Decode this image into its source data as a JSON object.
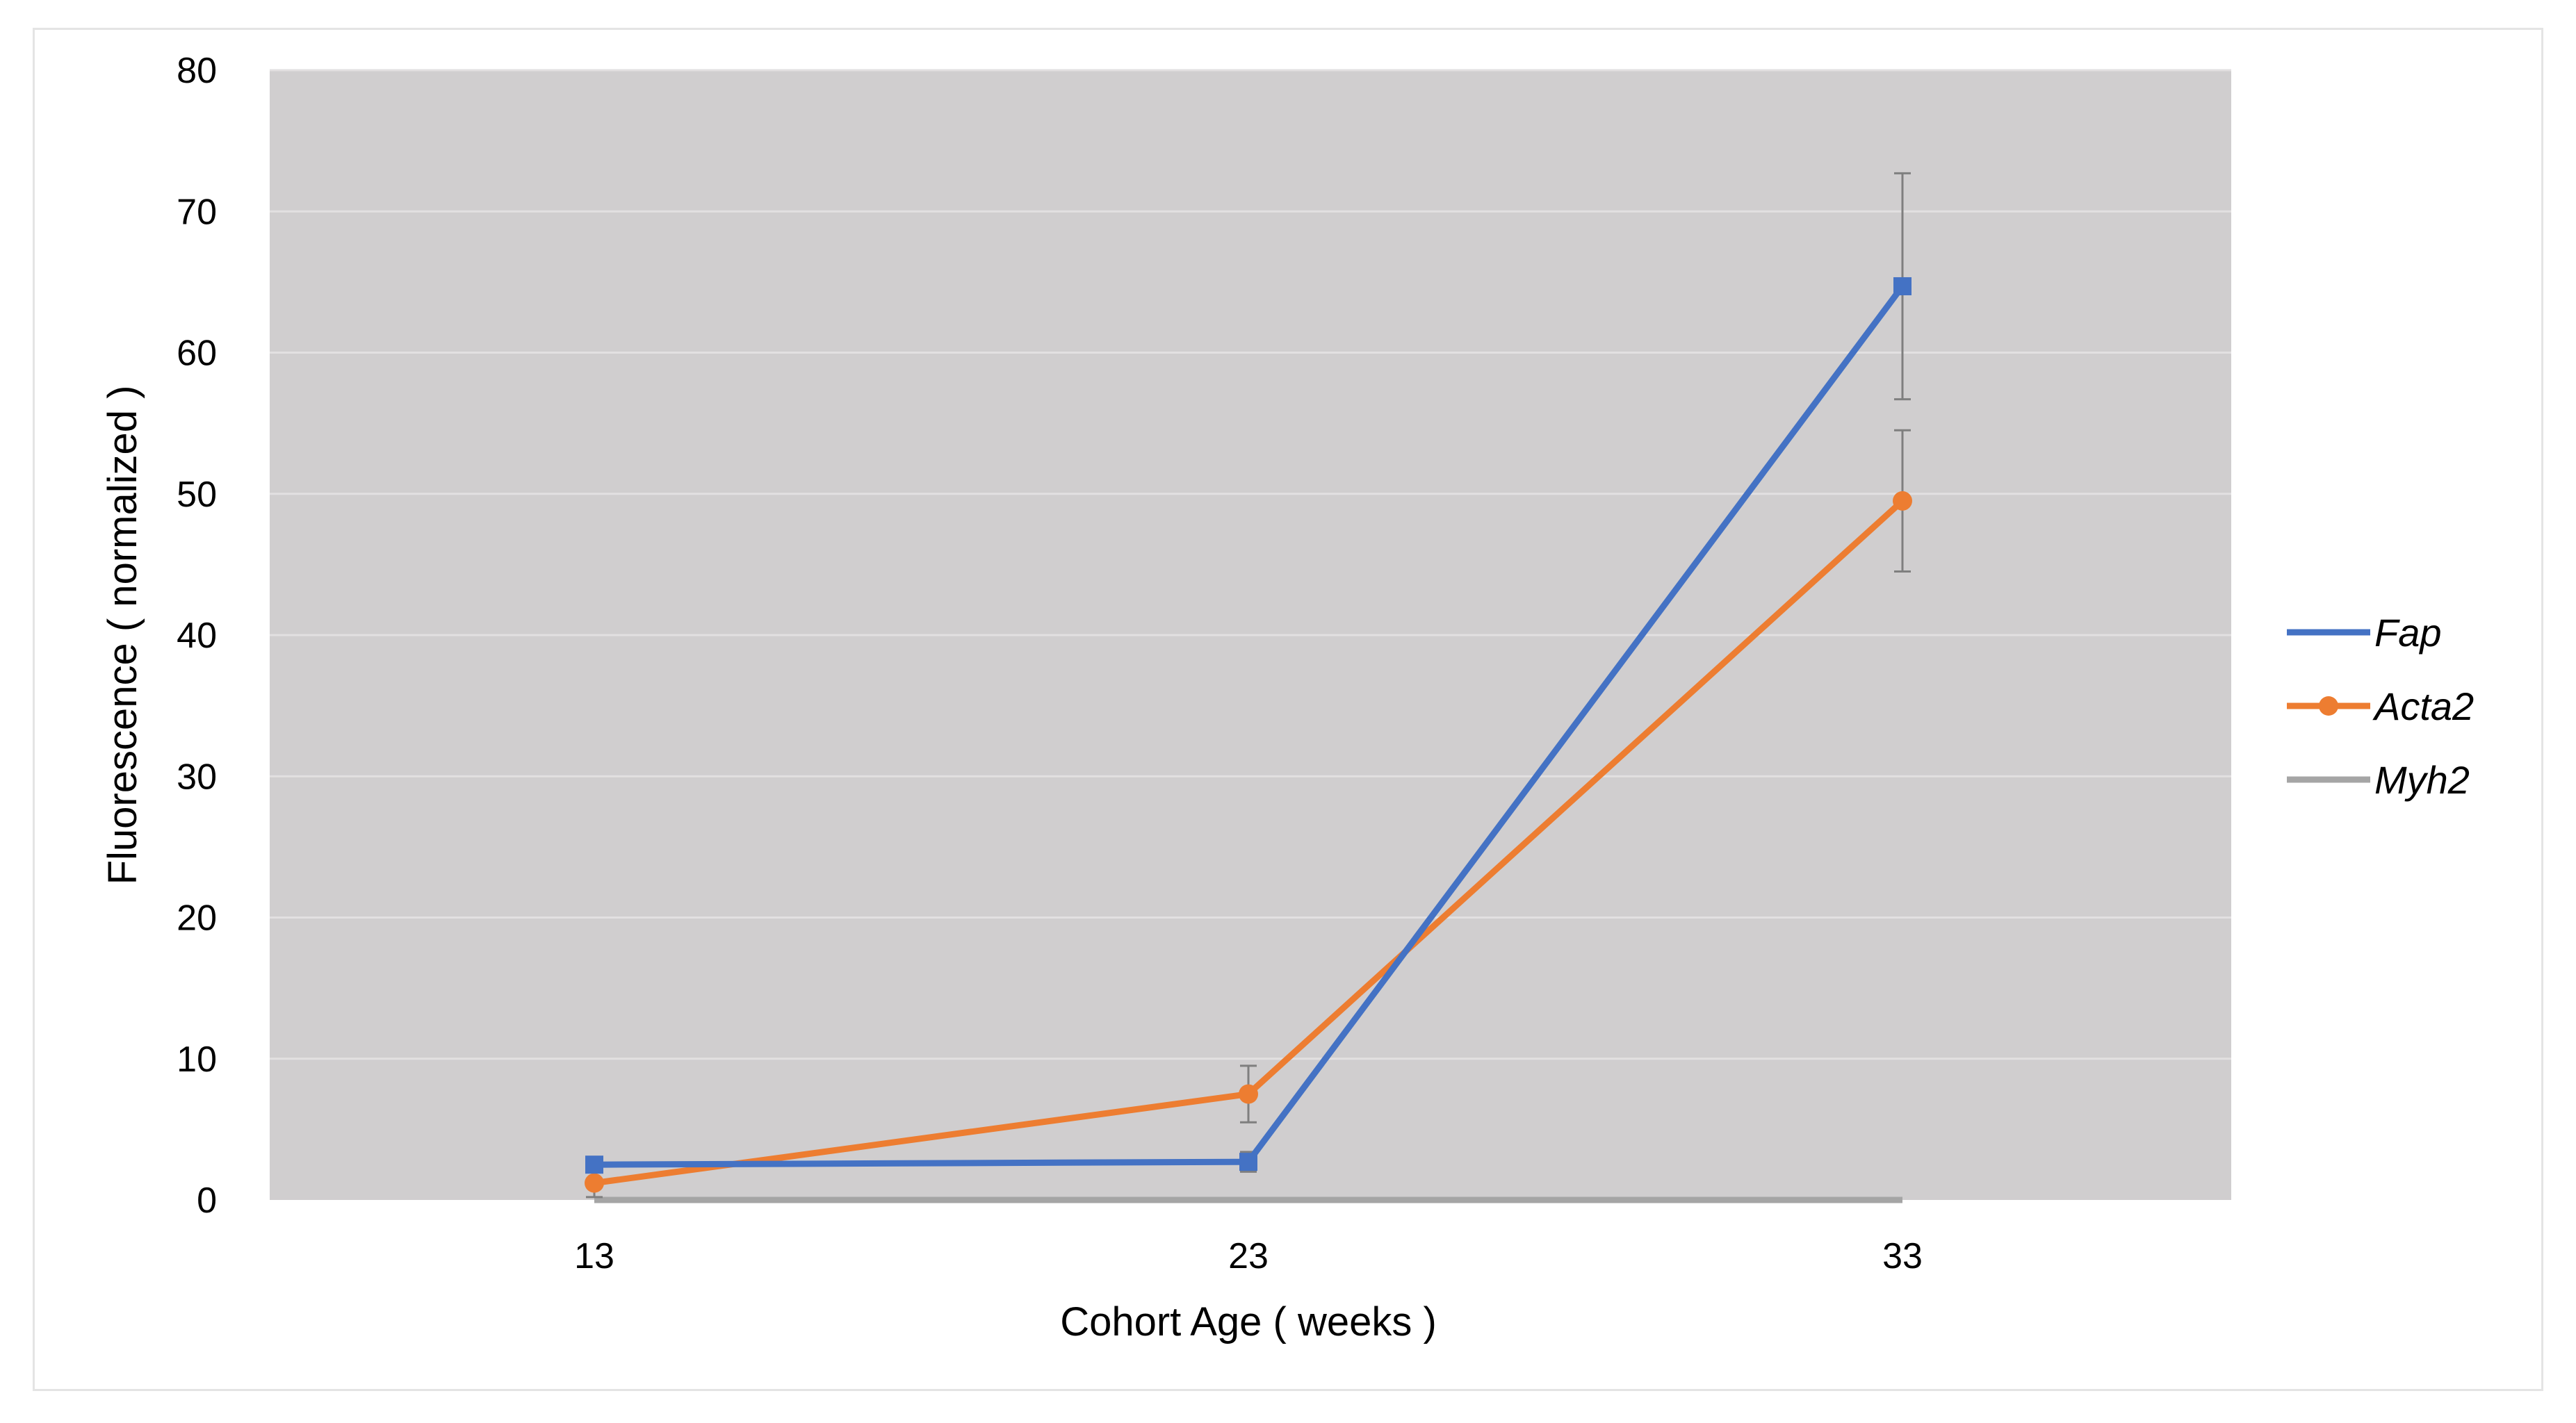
{
  "chart_data": {
    "type": "line",
    "xlabel": "Cohort Age ( weeks )",
    "ylabel": "Fluorescence ( normalized )",
    "categories": [
      "13",
      "23",
      "33"
    ],
    "ylim": [
      0,
      80
    ],
    "yticks": [
      0,
      10,
      20,
      30,
      40,
      50,
      60,
      70,
      80
    ],
    "grid": true,
    "legend_position": "right",
    "series": [
      {
        "name": "Fap",
        "color": "#4472C4",
        "marker": "square",
        "values": [
          2.5,
          2.7,
          64.7
        ],
        "error": [
          0.5,
          0.7,
          8.0
        ]
      },
      {
        "name": "Acta2",
        "color": "#ED7D31",
        "marker": "circle",
        "values": [
          1.2,
          7.5,
          49.5
        ],
        "error": [
          1.0,
          2.0,
          5.0
        ]
      },
      {
        "name": "Myh2",
        "color": "#A5A5A5",
        "marker": "none",
        "values": [
          0,
          0,
          0
        ],
        "error": [
          0,
          0,
          0
        ]
      }
    ],
    "colors": {
      "plot_background": "#D0CECF",
      "gridline": "#E2E0E1",
      "error_bar": "#7F7F7F"
    }
  }
}
